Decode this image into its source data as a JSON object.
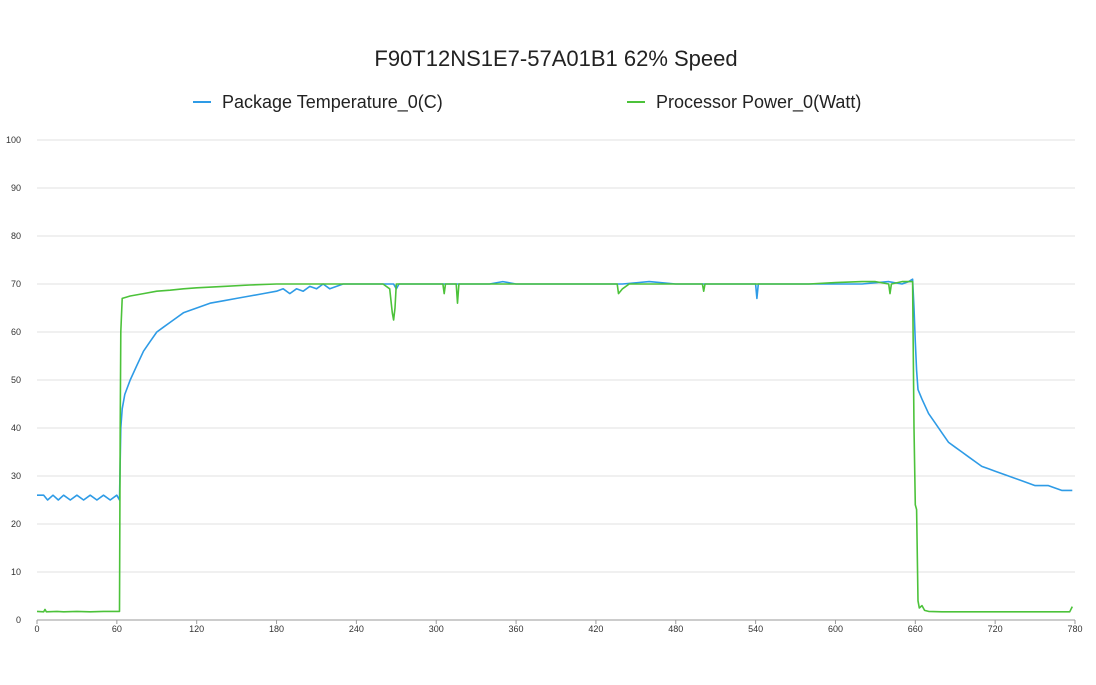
{
  "chart_data": {
    "type": "line",
    "title": "F90T12NS1E7-57A01B1 62% Speed",
    "legend_position": "top",
    "grid": true,
    "xlim": [
      0,
      780
    ],
    "ylim": [
      0,
      100
    ],
    "x_ticks": [
      0,
      60,
      120,
      180,
      240,
      300,
      360,
      420,
      480,
      540,
      600,
      660,
      720,
      780
    ],
    "y_ticks": [
      0,
      10,
      20,
      30,
      40,
      50,
      60,
      70,
      80,
      90,
      100
    ],
    "series": [
      {
        "name": "Package Temperature_0(C)",
        "color": "#2e9be6",
        "points": [
          [
            0,
            26
          ],
          [
            5,
            26
          ],
          [
            8,
            25
          ],
          [
            12,
            26
          ],
          [
            16,
            25
          ],
          [
            20,
            26
          ],
          [
            25,
            25
          ],
          [
            30,
            26
          ],
          [
            35,
            25
          ],
          [
            40,
            26
          ],
          [
            45,
            25
          ],
          [
            50,
            26
          ],
          [
            55,
            25
          ],
          [
            60,
            26
          ],
          [
            62,
            25
          ],
          [
            63,
            40
          ],
          [
            64,
            44
          ],
          [
            66,
            47
          ],
          [
            70,
            50
          ],
          [
            75,
            53
          ],
          [
            80,
            56
          ],
          [
            85,
            58
          ],
          [
            90,
            60
          ],
          [
            95,
            61
          ],
          [
            100,
            62
          ],
          [
            105,
            63
          ],
          [
            110,
            64
          ],
          [
            115,
            64.5
          ],
          [
            120,
            65
          ],
          [
            130,
            66
          ],
          [
            140,
            66.5
          ],
          [
            150,
            67
          ],
          [
            160,
            67.5
          ],
          [
            170,
            68
          ],
          [
            180,
            68.5
          ],
          [
            185,
            69
          ],
          [
            190,
            68
          ],
          [
            195,
            69
          ],
          [
            200,
            68.5
          ],
          [
            205,
            69.5
          ],
          [
            210,
            69
          ],
          [
            215,
            70
          ],
          [
            220,
            69
          ],
          [
            230,
            70
          ],
          [
            240,
            70
          ],
          [
            250,
            70
          ],
          [
            260,
            70
          ],
          [
            265,
            70
          ],
          [
            268,
            70
          ],
          [
            270,
            69
          ],
          [
            272,
            70
          ],
          [
            280,
            70
          ],
          [
            290,
            70
          ],
          [
            300,
            70
          ],
          [
            310,
            70
          ],
          [
            320,
            70
          ],
          [
            330,
            70
          ],
          [
            340,
            70
          ],
          [
            350,
            70.5
          ],
          [
            360,
            70
          ],
          [
            370,
            70
          ],
          [
            380,
            70
          ],
          [
            390,
            70
          ],
          [
            400,
            70
          ],
          [
            410,
            70
          ],
          [
            420,
            70
          ],
          [
            440,
            70
          ],
          [
            460,
            70.5
          ],
          [
            480,
            70
          ],
          [
            500,
            70
          ],
          [
            520,
            70
          ],
          [
            540,
            70
          ],
          [
            541,
            67
          ],
          [
            542,
            70
          ],
          [
            560,
            70
          ],
          [
            580,
            70
          ],
          [
            600,
            70
          ],
          [
            620,
            70
          ],
          [
            640,
            70.5
          ],
          [
            650,
            70
          ],
          [
            655,
            70.5
          ],
          [
            658,
            71
          ],
          [
            659,
            65
          ],
          [
            660,
            58
          ],
          [
            661,
            52
          ],
          [
            662,
            48
          ],
          [
            665,
            46
          ],
          [
            670,
            43
          ],
          [
            675,
            41
          ],
          [
            680,
            39
          ],
          [
            685,
            37
          ],
          [
            690,
            36
          ],
          [
            695,
            35
          ],
          [
            700,
            34
          ],
          [
            705,
            33
          ],
          [
            710,
            32
          ],
          [
            715,
            31.5
          ],
          [
            720,
            31
          ],
          [
            730,
            30
          ],
          [
            740,
            29
          ],
          [
            750,
            28
          ],
          [
            760,
            28
          ],
          [
            765,
            27.5
          ],
          [
            770,
            27
          ],
          [
            778,
            27
          ]
        ]
      },
      {
        "name": "Processor Power_0(Watt)",
        "color": "#4cc23a",
        "points": [
          [
            0,
            1.8
          ],
          [
            5,
            1.7
          ],
          [
            6,
            2.2
          ],
          [
            7,
            1.7
          ],
          [
            15,
            1.8
          ],
          [
            20,
            1.7
          ],
          [
            30,
            1.8
          ],
          [
            40,
            1.7
          ],
          [
            50,
            1.8
          ],
          [
            60,
            1.8
          ],
          [
            62,
            1.8
          ],
          [
            62.5,
            40
          ],
          [
            63,
            60
          ],
          [
            64,
            67
          ],
          [
            70,
            67.5
          ],
          [
            80,
            68
          ],
          [
            90,
            68.5
          ],
          [
            100,
            68.7
          ],
          [
            110,
            69
          ],
          [
            120,
            69.2
          ],
          [
            140,
            69.5
          ],
          [
            160,
            69.8
          ],
          [
            180,
            70
          ],
          [
            200,
            70
          ],
          [
            220,
            70
          ],
          [
            240,
            70
          ],
          [
            260,
            70
          ],
          [
            265,
            69
          ],
          [
            267,
            64
          ],
          [
            268,
            62.5
          ],
          [
            269,
            65
          ],
          [
            270,
            70
          ],
          [
            300,
            70
          ],
          [
            305,
            70
          ],
          [
            306,
            68
          ],
          [
            307,
            70
          ],
          [
            315,
            70
          ],
          [
            316,
            66
          ],
          [
            317,
            70
          ],
          [
            340,
            70
          ],
          [
            360,
            70
          ],
          [
            380,
            70
          ],
          [
            400,
            70
          ],
          [
            420,
            70
          ],
          [
            436,
            70
          ],
          [
            437,
            68
          ],
          [
            440,
            69
          ],
          [
            445,
            70
          ],
          [
            460,
            70
          ],
          [
            480,
            70
          ],
          [
            500,
            70
          ],
          [
            501,
            68.5
          ],
          [
            502,
            70
          ],
          [
            520,
            70
          ],
          [
            540,
            70
          ],
          [
            560,
            70
          ],
          [
            580,
            70
          ],
          [
            600,
            70.3
          ],
          [
            620,
            70.5
          ],
          [
            630,
            70.5
          ],
          [
            640,
            70
          ],
          [
            641,
            68
          ],
          [
            642,
            70
          ],
          [
            650,
            70.5
          ],
          [
            658,
            70.5
          ],
          [
            659,
            40
          ],
          [
            660,
            24
          ],
          [
            661,
            23
          ],
          [
            662,
            4
          ],
          [
            663,
            2.5
          ],
          [
            665,
            3
          ],
          [
            667,
            2
          ],
          [
            670,
            1.8
          ],
          [
            680,
            1.7
          ],
          [
            700,
            1.7
          ],
          [
            720,
            1.7
          ],
          [
            740,
            1.7
          ],
          [
            760,
            1.7
          ],
          [
            776,
            1.7
          ],
          [
            778,
            2.8
          ]
        ]
      }
    ]
  }
}
